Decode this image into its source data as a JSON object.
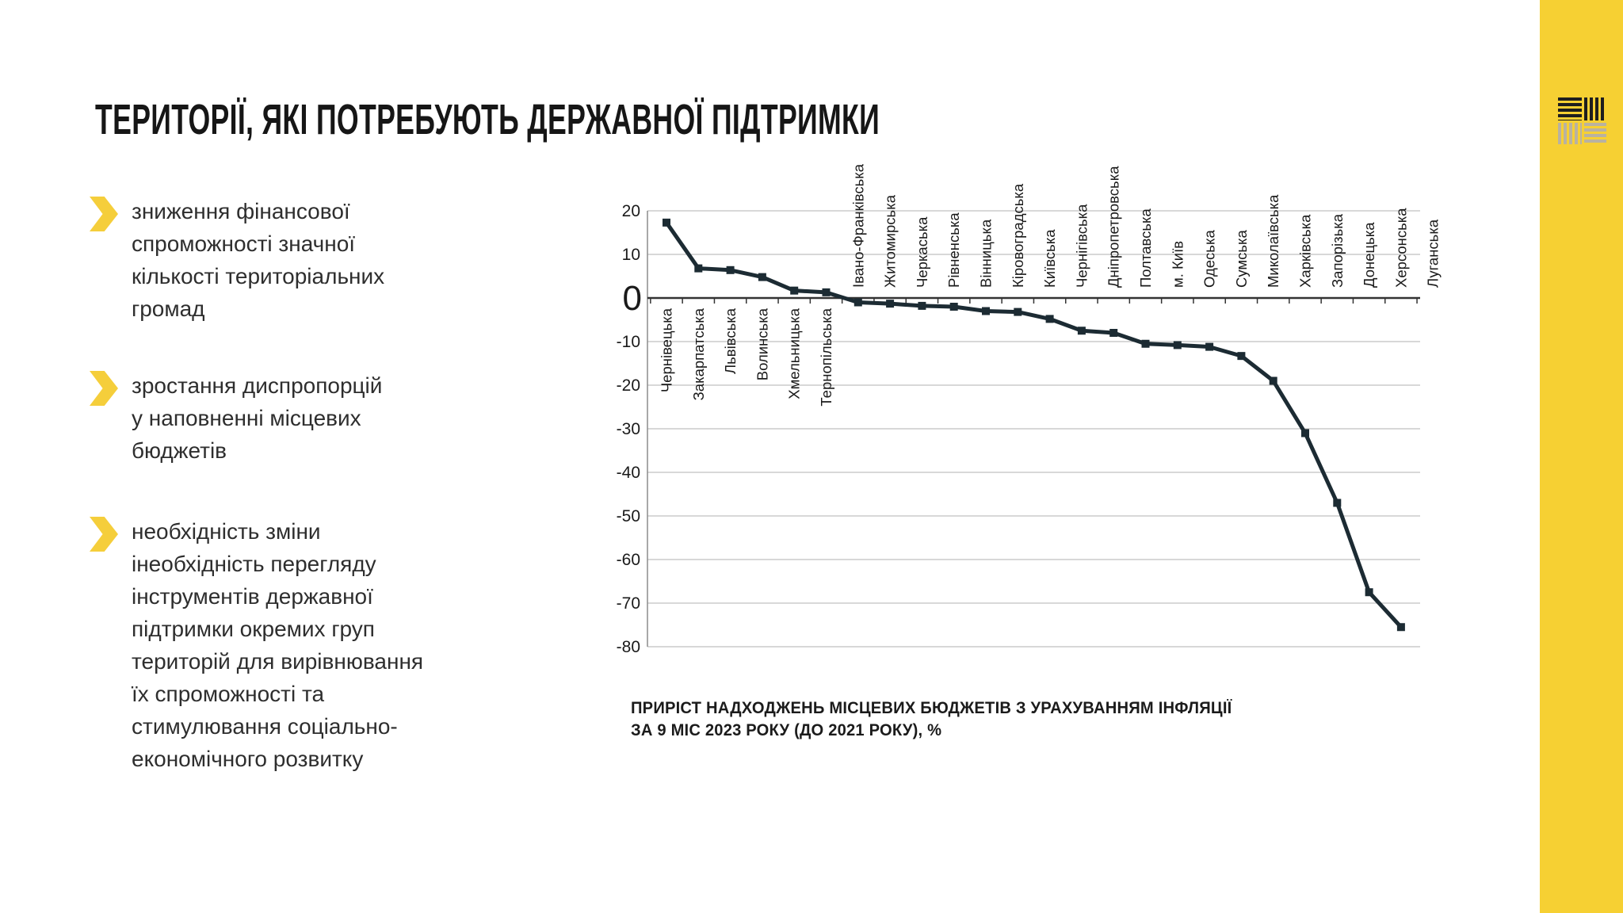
{
  "title": "ТЕРИТОРІЇ, ЯКІ ПОТРЕБУЮТЬ ДЕРЖАВНОЇ ПІДТРИМКИ",
  "bullets": [
    {
      "text": "зниження фінансової\nспроможності значної\nкількості територіальних\nгромад"
    },
    {
      "text": "зростання диспропорцій\nу наповненні місцевих\nбюджетів"
    },
    {
      "text": "необхідність зміни\nінеобхідність перегляду\nінструментів державної\nпідтримки окремих груп\nтериторій для вирівнювання\nїх спроможності та\nстимулювання соціально-\nекономічного розвитку"
    }
  ],
  "chart_data": {
    "type": "line",
    "title": "ПРИРІСТ НАДХОДЖЕНЬ МІСЦЕВИХ БЮДЖЕТІВ З УРАХУВАННЯМ ІНФЛЯЦІЇ\nЗА 9 МІС 2023 РОКУ (ДО 2021 РОКУ), %",
    "categories": [
      "Чернівецька",
      "Закарпатська",
      "Львівська",
      "Волинська",
      "Хмельницька",
      "Тернопільська",
      "Івано-Франківська",
      "Житомирська",
      "Черкаська",
      "Рівненська",
      "Вінницька",
      "Кіровоградська",
      "Київська",
      "Чернігівська",
      "Дніпропетровська",
      "Полтавська",
      "м. Київ",
      "Одеська",
      "Сумська",
      "Миколаївська",
      "Харківська",
      "Запорізька",
      "Донецька",
      "Херсонська",
      "Луганська"
    ],
    "values": [
      17.3,
      6.8,
      6.4,
      4.8,
      1.7,
      1.3,
      -1,
      -1.3,
      -1.8,
      -2,
      -3,
      -3.2,
      -4.8,
      -7.5,
      -8,
      -10.5,
      -10.8,
      -11.2,
      -13.3,
      -19,
      -31,
      -47,
      -67.5,
      -75.5,
      null
    ],
    "xlabel": "",
    "ylabel": "",
    "ylim": [
      -80,
      20
    ],
    "ytick_step": 10,
    "yticks": [
      20,
      10,
      0,
      -10,
      -20,
      -30,
      -40,
      -50,
      -60,
      -70,
      -80
    ],
    "grid": true,
    "legend": "none",
    "marker": "square",
    "label_placement": "opposite-side-of-axis"
  },
  "colors": {
    "accent_yellow": "#F6D033",
    "chevron_yellow": "#F5CE3B",
    "line": "#1C2B33",
    "gridline": "#B2B2B2",
    "text": "#1A1A1A",
    "logo_gray": "#B9B2A1",
    "logo_black": "#1E1E1E"
  },
  "icons": {
    "bullet_marker": "chevron-right",
    "brand_logo": "four-striped-squares"
  }
}
